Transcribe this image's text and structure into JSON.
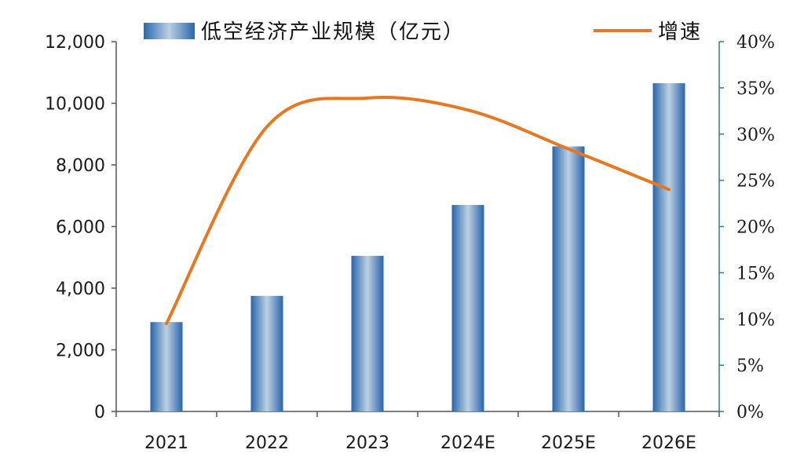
{
  "chart_data": {
    "type": "bar+line",
    "categories": [
      "2021",
      "2022",
      "2023",
      "2024E",
      "2025E",
      "2026E"
    ],
    "series": [
      {
        "name": "低空经济产业规模（亿元）",
        "type": "bar",
        "axis": "left",
        "values": [
          2900,
          3750,
          5050,
          6700,
          8600,
          10650
        ]
      },
      {
        "name": "增速",
        "type": "line",
        "axis": "right",
        "values": [
          9.5,
          30.8,
          33.9,
          32.6,
          28.4,
          24.0
        ]
      }
    ],
    "y_left": {
      "ylim": [
        0,
        12000
      ],
      "ticks": [
        "0",
        "2,000",
        "4,000",
        "6,000",
        "8,000",
        "10,000",
        "12,000"
      ]
    },
    "y_right": {
      "ylim": [
        0,
        40
      ],
      "ticks": [
        "0%",
        "5%",
        "10%",
        "15%",
        "20%",
        "25%",
        "30%",
        "35%",
        "40%"
      ]
    },
    "legend_position": "top",
    "grid": false,
    "colors": {
      "bar": "#2f6db5",
      "bar_highlight": "#b8cde0",
      "line": "#e87722",
      "right_axis": "#2e7d8c"
    }
  }
}
